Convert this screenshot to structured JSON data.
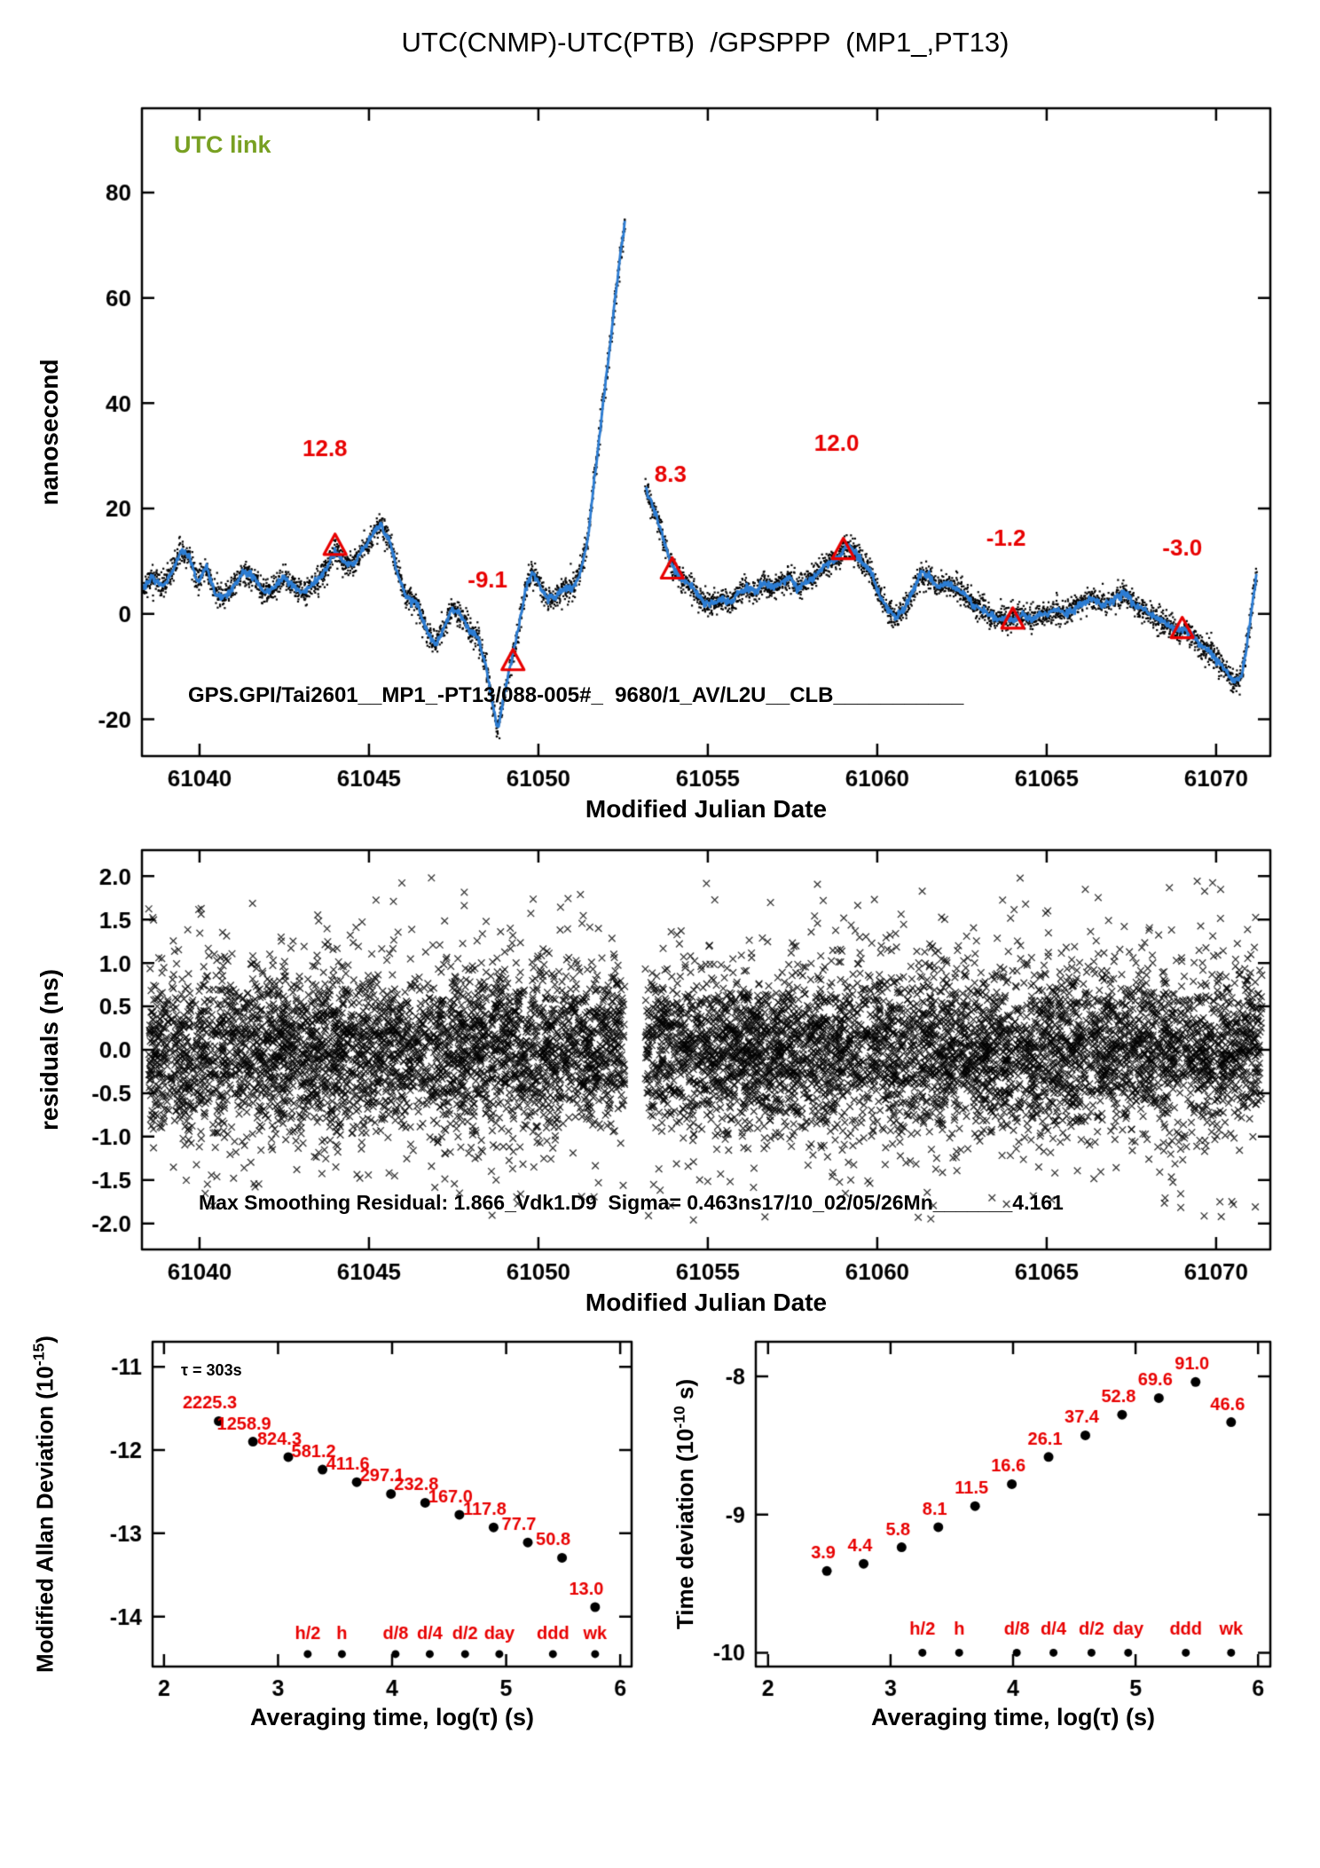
{
  "title": "UTC(CNMP)-UTC(PTB)  /GPSPPP  (MP1_,PT13)",
  "colors": {
    "blue": "#2b7cd3",
    "red": "#e80000",
    "green": "#78a022",
    "black": "#000000"
  },
  "chart_data": [
    {
      "type": "line",
      "name": "utc-link-time-series",
      "utc_label": "UTC link",
      "xlabel": "Modified Julian Date",
      "ylabel": "nanosecond",
      "footer_text": "GPS.GPI/Tai2601__MP1_-PT13/088-005#_  9680/1_AV/L2U__CLB___________",
      "xlim": [
        61038.3,
        61071.6
      ],
      "ylim": [
        -27,
        96
      ],
      "xticks": [
        61040,
        61045,
        61050,
        61055,
        61060,
        61065,
        61070
      ],
      "yticks": [
        -20,
        0,
        20,
        40,
        60,
        80
      ],
      "gaps": [
        [
          61052.55,
          61053.15
        ]
      ],
      "noise": {
        "sigma": 1.15,
        "step": 0.012,
        "per_step": 2,
        "seed": 11,
        "line_jitter": 0.35
      },
      "annotations": [
        {
          "value": "12.8",
          "x": 61044.0,
          "y": 12.8,
          "lx": 61043.7,
          "ly": 30
        },
        {
          "value": "-9.1",
          "x": 61049.25,
          "y": -9.1,
          "lx": 61048.5,
          "ly": 5
        },
        {
          "value": "8.3",
          "x": 61053.95,
          "y": 8.3,
          "lx": 61053.9,
          "ly": 25
        },
        {
          "value": "12.0",
          "x": 61059.0,
          "y": 12.0,
          "lx": 61058.8,
          "ly": 31
        },
        {
          "value": "-1.2",
          "x": 61064.0,
          "y": -1.2,
          "lx": 61063.8,
          "ly": 13
        },
        {
          "value": "-3.0",
          "x": 61069.0,
          "y": -3.0,
          "lx": 61069.0,
          "ly": 11
        }
      ],
      "series": [
        [
          61038.35,
          5
        ],
        [
          61038.6,
          7
        ],
        [
          61038.9,
          5
        ],
        [
          61039.2,
          8
        ],
        [
          61039.45,
          12
        ],
        [
          61039.7,
          11
        ],
        [
          61039.95,
          6
        ],
        [
          61040.2,
          9
        ],
        [
          61040.45,
          4
        ],
        [
          61040.7,
          3
        ],
        [
          61041.0,
          5
        ],
        [
          61041.3,
          8
        ],
        [
          61041.6,
          7
        ],
        [
          61041.9,
          4
        ],
        [
          61042.2,
          5
        ],
        [
          61042.5,
          7
        ],
        [
          61042.8,
          5
        ],
        [
          61043.1,
          4
        ],
        [
          61043.4,
          6
        ],
        [
          61043.7,
          8
        ],
        [
          61044.0,
          12
        ],
        [
          61044.25,
          10
        ],
        [
          61044.5,
          9
        ],
        [
          61044.8,
          12
        ],
        [
          61045.1,
          15
        ],
        [
          61045.35,
          17
        ],
        [
          61045.6,
          14
        ],
        [
          61045.85,
          8
        ],
        [
          61046.1,
          3
        ],
        [
          61046.4,
          2
        ],
        [
          61046.7,
          -3
        ],
        [
          61046.95,
          -6
        ],
        [
          61047.2,
          -3
        ],
        [
          61047.45,
          1
        ],
        [
          61047.7,
          0
        ],
        [
          61047.95,
          -3
        ],
        [
          61048.2,
          -4
        ],
        [
          61048.45,
          -10
        ],
        [
          61048.65,
          -17
        ],
        [
          61048.8,
          -22
        ],
        [
          61049.0,
          -15
        ],
        [
          61049.2,
          -9
        ],
        [
          61049.4,
          -3
        ],
        [
          61049.6,
          4
        ],
        [
          61049.8,
          8
        ],
        [
          61050.0,
          6
        ],
        [
          61050.25,
          3
        ],
        [
          61050.5,
          3
        ],
        [
          61050.75,
          5
        ],
        [
          61051.0,
          5
        ],
        [
          61051.2,
          7
        ],
        [
          61051.45,
          14
        ],
        [
          61051.7,
          28
        ],
        [
          61051.95,
          42
        ],
        [
          61052.2,
          56
        ],
        [
          61052.45,
          70
        ],
        [
          61052.55,
          74
        ],
        [
          61053.15,
          24
        ],
        [
          61053.35,
          21
        ],
        [
          61053.55,
          17
        ],
        [
          61053.75,
          13
        ],
        [
          61053.95,
          9
        ],
        [
          61054.15,
          7
        ],
        [
          61054.4,
          6
        ],
        [
          61054.65,
          4
        ],
        [
          61054.9,
          2
        ],
        [
          61055.15,
          2
        ],
        [
          61055.4,
          3
        ],
        [
          61055.65,
          2
        ],
        [
          61055.9,
          4
        ],
        [
          61056.15,
          5
        ],
        [
          61056.4,
          4
        ],
        [
          61056.65,
          6
        ],
        [
          61056.9,
          5
        ],
        [
          61057.15,
          6
        ],
        [
          61057.4,
          7
        ],
        [
          61057.65,
          5
        ],
        [
          61057.9,
          6
        ],
        [
          61058.15,
          7
        ],
        [
          61058.4,
          9
        ],
        [
          61058.65,
          10
        ],
        [
          61058.9,
          11
        ],
        [
          61059.1,
          13
        ],
        [
          61059.3,
          12
        ],
        [
          61059.55,
          10
        ],
        [
          61059.8,
          8
        ],
        [
          61060.05,
          4
        ],
        [
          61060.3,
          1
        ],
        [
          61060.55,
          -1
        ],
        [
          61060.8,
          1
        ],
        [
          61061.05,
          4
        ],
        [
          61061.3,
          8
        ],
        [
          61061.55,
          7
        ],
        [
          61061.8,
          5
        ],
        [
          61062.05,
          6
        ],
        [
          61062.3,
          5
        ],
        [
          61062.55,
          4
        ],
        [
          61062.8,
          2
        ],
        [
          61063.05,
          1
        ],
        [
          61063.3,
          0
        ],
        [
          61063.55,
          -1
        ],
        [
          61063.8,
          -1
        ],
        [
          61064.05,
          -1
        ],
        [
          61064.3,
          0
        ],
        [
          61064.55,
          -1
        ],
        [
          61064.8,
          0
        ],
        [
          61065.05,
          0
        ],
        [
          61065.3,
          1
        ],
        [
          61065.55,
          0
        ],
        [
          61065.8,
          1
        ],
        [
          61066.05,
          2
        ],
        [
          61066.3,
          3
        ],
        [
          61066.55,
          2
        ],
        [
          61066.8,
          2
        ],
        [
          61067.05,
          3
        ],
        [
          61067.3,
          4
        ],
        [
          61067.55,
          2
        ],
        [
          61067.8,
          1
        ],
        [
          61068.05,
          0
        ],
        [
          61068.3,
          -1
        ],
        [
          61068.55,
          -2
        ],
        [
          61068.8,
          -3
        ],
        [
          61069.05,
          -3
        ],
        [
          61069.3,
          -4
        ],
        [
          61069.55,
          -6
        ],
        [
          61069.8,
          -7
        ],
        [
          61070.05,
          -9
        ],
        [
          61070.3,
          -11
        ],
        [
          61070.55,
          -13
        ],
        [
          61070.75,
          -12
        ],
        [
          61070.9,
          -6
        ],
        [
          61071.05,
          1
        ],
        [
          61071.2,
          8
        ]
      ]
    },
    {
      "type": "scatter",
      "name": "smoothing-residuals",
      "xlabel": "Modified Julian Date",
      "ylabel": "residuals (ns)",
      "footer_text": "Max Smoothing Residual: 1.866_Vdk1.D9  Sigma= 0.463ns17/10_02/05/26Mn_______4.161",
      "xlim": [
        61038.3,
        61071.6
      ],
      "ylim": [
        -2.3,
        2.3
      ],
      "xticks": [
        61040,
        61045,
        61050,
        61055,
        61060,
        61065,
        61070
      ],
      "yticks": [
        -2,
        -1.5,
        -1,
        -0.5,
        0,
        0.5,
        1,
        1.5,
        2
      ],
      "ytick_decimals": 1,
      "gaps": [
        [
          61052.55,
          61053.15
        ]
      ],
      "noise": {
        "populations": [
          {
            "n": 7500,
            "sigma": 0.45
          },
          {
            "n": 1500,
            "sigma": 0.85
          }
        ],
        "clip": 2.0,
        "seed": 7
      }
    },
    {
      "type": "points",
      "name": "modified-allan-deviation",
      "xlabel": "Averaging time, log(τ) (s)",
      "ylabel": "Modified Allan Deviation (10^{-15})",
      "tau_note": "τ = 303s",
      "xlim": [
        1.9,
        6.1
      ],
      "ylim": [
        -14.6,
        -10.7
      ],
      "xticks": [
        2,
        3,
        4,
        5,
        6
      ],
      "yticks": [
        -14,
        -13,
        -12,
        -11
      ],
      "unit_exponent": -15,
      "label_dx": -10,
      "points": {
        "x": [
          2.48,
          2.78,
          3.09,
          3.39,
          3.69,
          3.99,
          4.29,
          4.59,
          4.89,
          5.19,
          5.49,
          5.78
        ],
        "values": [
          2225.3,
          1258.9,
          824.3,
          581.2,
          411.6,
          297.1,
          232.8,
          167.0,
          117.8,
          77.7,
          50.8,
          13.0
        ]
      },
      "time_marks": {
        "labels": [
          "h/2",
          "h",
          "d/8",
          "d/4",
          "d/2",
          "day",
          "ddd",
          "wk"
        ],
        "x": [
          3.26,
          3.56,
          4.03,
          4.33,
          4.64,
          4.94,
          5.41,
          5.78
        ],
        "label_y": -14.27,
        "dot_y": -14.45
      }
    },
    {
      "type": "points",
      "name": "time-deviation",
      "xlabel": "Averaging time, log(τ) (s)",
      "ylabel": "Time deviation (10^{-10} s)",
      "xlim": [
        1.9,
        6.1
      ],
      "ylim": [
        -10.1,
        -7.75
      ],
      "xticks": [
        2,
        3,
        4,
        5,
        6
      ],
      "yticks": [
        -10,
        -9,
        -8
      ],
      "unit_exponent": -10,
      "label_dx": -4,
      "points": {
        "x": [
          2.48,
          2.78,
          3.09,
          3.39,
          3.69,
          3.99,
          4.29,
          4.59,
          4.89,
          5.19,
          5.49,
          5.78
        ],
        "values": [
          3.9,
          4.4,
          5.8,
          8.1,
          11.5,
          16.6,
          26.1,
          37.4,
          52.8,
          69.6,
          91.0,
          46.6
        ]
      },
      "time_marks": {
        "labels": [
          "h/2",
          "h",
          "d/8",
          "d/4",
          "d/2",
          "day",
          "ddd",
          "wk"
        ],
        "x": [
          3.26,
          3.56,
          4.03,
          4.33,
          4.64,
          4.94,
          5.41,
          5.78
        ],
        "label_y": -9.87,
        "dot_y": -10.0
      }
    }
  ]
}
